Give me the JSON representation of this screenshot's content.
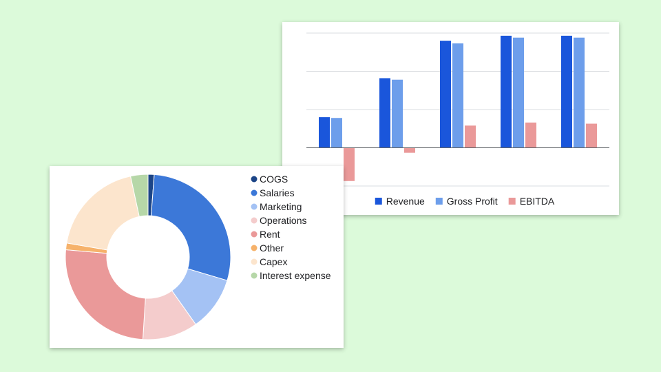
{
  "chart_data": [
    {
      "type": "bar",
      "categories": [
        "",
        "",
        "",
        "",
        ""
      ],
      "series": [
        {
          "name": "Revenue",
          "color": "#1a56db",
          "values": [
            8,
            18.2,
            28,
            29.3,
            29.3
          ]
        },
        {
          "name": "Gross Profit",
          "color": "#6d9eeb",
          "values": [
            7.8,
            17.8,
            27.3,
            28.8,
            28.8
          ]
        },
        {
          "name": "EBITDA",
          "color": "#ea9999",
          "values": [
            -8.7,
            -1.3,
            5.8,
            6.6,
            6.3
          ]
        }
      ],
      "ylim": [
        -10,
        30
      ],
      "grid": true,
      "legend": "bottom"
    },
    {
      "type": "pie",
      "donut": true,
      "legend": "right",
      "labels": [
        "COGS",
        "Salaries",
        "Marketing",
        "Operations",
        "Rent",
        "Other",
        "Capex",
        "Interest expense"
      ],
      "colors": [
        "#1c4587",
        "#3c78d8",
        "#a4c2f4",
        "#f4cccc",
        "#ea9999",
        "#f6b26b",
        "#fce5cd",
        "#b6d7a8"
      ],
      "values": [
        1.2,
        28.4,
        10.6,
        10.8,
        25.4,
        1.3,
        18.9,
        3.4
      ]
    }
  ]
}
